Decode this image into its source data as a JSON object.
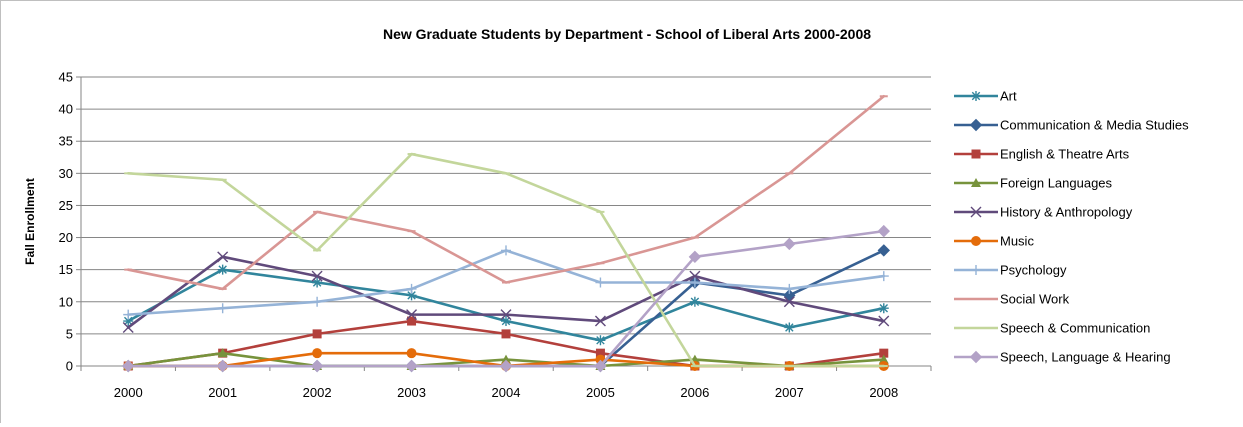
{
  "chart_data": {
    "type": "line",
    "title": "New Graduate Students by Department - School of Liberal Arts 2000-2008",
    "xlabel": "",
    "ylabel": "Fall Enrollment",
    "categories": [
      "2000",
      "2001",
      "2002",
      "2003",
      "2004",
      "2005",
      "2006",
      "2007",
      "2008"
    ],
    "ylim": [
      0,
      45
    ],
    "yticks": [
      0,
      5,
      10,
      15,
      20,
      25,
      30,
      35,
      40,
      45
    ],
    "grid": "horizontal major gridlines",
    "legend_position": "right",
    "series": [
      {
        "name": "Art",
        "color": "#31859c",
        "marker": "star",
        "values": [
          7,
          15,
          13,
          11,
          7,
          4,
          10,
          6,
          9
        ]
      },
      {
        "name": "Communication & Media Studies",
        "color": "#376092",
        "marker": "diamond",
        "values": [
          0,
          0,
          0,
          0,
          0,
          0,
          13,
          11,
          18
        ]
      },
      {
        "name": "English & Theatre Arts",
        "color": "#b3403c",
        "marker": "square",
        "values": [
          0,
          2,
          5,
          7,
          5,
          2,
          0,
          0,
          2
        ]
      },
      {
        "name": "Foreign Languages",
        "color": "#77933c",
        "marker": "triangle",
        "values": [
          0,
          2,
          0,
          0,
          1,
          0,
          1,
          0,
          1
        ]
      },
      {
        "name": "History & Anthropology",
        "color": "#604a7b",
        "marker": "x",
        "values": [
          6,
          17,
          14,
          8,
          8,
          7,
          14,
          10,
          7
        ]
      },
      {
        "name": "Music",
        "color": "#e46c0a",
        "marker": "circle",
        "values": [
          0,
          0,
          2,
          2,
          0,
          1,
          0,
          0,
          0
        ]
      },
      {
        "name": "Psychology",
        "color": "#95b3d7",
        "marker": "plus",
        "values": [
          8,
          9,
          10,
          12,
          18,
          13,
          13,
          12,
          14
        ]
      },
      {
        "name": "Social Work",
        "color": "#d99694",
        "marker": "dash",
        "values": [
          15,
          12,
          24,
          21,
          13,
          16,
          20,
          30,
          42
        ]
      },
      {
        "name": "Speech & Communication",
        "color": "#c3d69b",
        "marker": "dash",
        "values": [
          30,
          29,
          18,
          33,
          30,
          24,
          0,
          0,
          0
        ]
      },
      {
        "name": "Speech, Language & Hearing",
        "color": "#b3a2c7",
        "marker": "diamond",
        "values": [
          0,
          0,
          0,
          0,
          0,
          0,
          17,
          19,
          21
        ]
      }
    ]
  }
}
